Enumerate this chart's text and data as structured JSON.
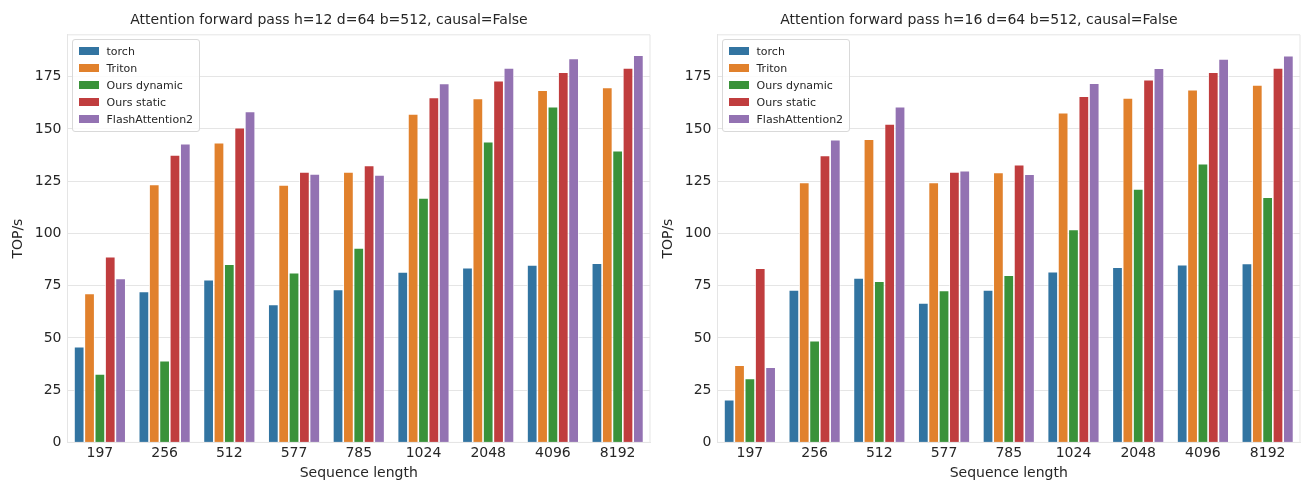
{
  "chart_data": [
    {
      "type": "bar",
      "title": "Attention forward pass h=12 d=64 b=512, causal=False",
      "xlabel": "Sequence length",
      "ylabel": "TOP/s",
      "categories": [
        "197",
        "256",
        "512",
        "577",
        "785",
        "1024",
        "2048",
        "4096",
        "8192"
      ],
      "series": [
        {
          "name": "torch",
          "color": "#3274a1",
          "values": [
            45.8,
            72.2,
            77.8,
            66.0,
            73.2,
            81.6,
            83.6,
            84.9,
            85.7
          ]
        },
        {
          "name": "Triton",
          "color": "#e1812c",
          "values": [
            71.2,
            123.4,
            143.4,
            123.2,
            129.4,
            157.1,
            164.6,
            168.5,
            169.8
          ]
        },
        {
          "name": "Ours dynamic",
          "color": "#3a923a",
          "values": [
            32.7,
            39.1,
            85.3,
            81.2,
            93.0,
            116.9,
            143.8,
            160.6,
            139.6
          ]
        },
        {
          "name": "Ours static",
          "color": "#c03d3e",
          "values": [
            88.8,
            137.5,
            150.6,
            129.4,
            132.5,
            165.0,
            173.1,
            177.1,
            179.1
          ]
        },
        {
          "name": "FlashAttention2",
          "color": "#9372b2",
          "values": [
            78.4,
            142.9,
            158.3,
            128.4,
            128.0,
            171.7,
            179.1,
            183.7,
            185.2
          ]
        }
      ],
      "ylim": [
        0,
        195
      ],
      "yticks": [
        0,
        25,
        50,
        75,
        100,
        125,
        150,
        175
      ],
      "grid": "y",
      "legend": "top left"
    },
    {
      "type": "bar",
      "title": "Attention forward pass h=16 d=64 b=512, causal=False",
      "xlabel": "Sequence length",
      "ylabel": "TOP/s",
      "categories": [
        "197",
        "256",
        "512",
        "577",
        "785",
        "1024",
        "2048",
        "4096",
        "8192"
      ],
      "series": [
        {
          "name": "torch",
          "color": "#3274a1",
          "values": [
            20.4,
            72.9,
            78.7,
            66.7,
            72.9,
            81.7,
            83.8,
            85.0,
            85.6
          ]
        },
        {
          "name": "Triton",
          "color": "#e1812c",
          "values": [
            36.9,
            124.4,
            145.0,
            124.4,
            129.2,
            157.7,
            164.8,
            168.7,
            171.0
          ]
        },
        {
          "name": "Ours dynamic",
          "color": "#3a923a",
          "values": [
            30.6,
            48.7,
            77.1,
            72.7,
            80.0,
            101.9,
            121.2,
            133.3,
            117.3
          ]
        },
        {
          "name": "Ours static",
          "color": "#c03d3e",
          "values": [
            83.3,
            137.3,
            152.3,
            129.4,
            132.9,
            165.6,
            173.5,
            177.1,
            179.2
          ]
        },
        {
          "name": "FlashAttention2",
          "color": "#9372b2",
          "values": [
            36.0,
            144.8,
            160.6,
            130.0,
            128.3,
            171.9,
            179.0,
            183.5,
            185.0
          ]
        }
      ],
      "ylim": [
        0,
        195
      ],
      "yticks": [
        0,
        25,
        50,
        75,
        100,
        125,
        150,
        175
      ],
      "grid": "y",
      "legend": "top left"
    }
  ]
}
